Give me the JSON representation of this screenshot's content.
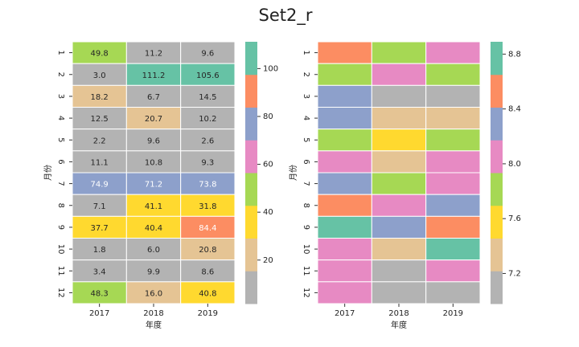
{
  "title": "Set2_r",
  "chart_data": [
    {
      "type": "heatmap",
      "xlabel": "年度",
      "ylabel": "月份",
      "x_categories": [
        "2017",
        "2018",
        "2019"
      ],
      "y_categories": [
        "1",
        "2",
        "3",
        "4",
        "5",
        "6",
        "7",
        "8",
        "9",
        "10",
        "11",
        "12"
      ],
      "values": [
        [
          49.8,
          11.2,
          9.6
        ],
        [
          3.0,
          111.2,
          105.6
        ],
        [
          18.2,
          6.7,
          14.5
        ],
        [
          12.5,
          20.7,
          10.2
        ],
        [
          2.2,
          9.6,
          2.6
        ],
        [
          11.1,
          10.8,
          9.3
        ],
        [
          74.9,
          71.2,
          73.8
        ],
        [
          7.1,
          41.1,
          31.8
        ],
        [
          37.7,
          40.4,
          84.4
        ],
        [
          1.8,
          6.0,
          20.8
        ],
        [
          3.4,
          9.9,
          8.6
        ],
        [
          48.3,
          16.0,
          40.8
        ]
      ],
      "value_labels": [
        [
          "49.8",
          "11.2",
          "9.6"
        ],
        [
          "3.0",
          "111.2",
          "105.6"
        ],
        [
          "18.2",
          "6.7",
          "14.5"
        ],
        [
          "12.5",
          "20.7",
          "10.2"
        ],
        [
          "2.2",
          "9.6",
          "2.6"
        ],
        [
          "11.1",
          "10.8",
          "9.3"
        ],
        [
          "74.9",
          "71.2",
          "73.8"
        ],
        [
          "7.1",
          "41.1",
          "31.8"
        ],
        [
          "37.7",
          "40.4",
          "84.4"
        ],
        [
          "1.8",
          "6.0",
          "20.8"
        ],
        [
          "3.4",
          "9.9",
          "8.6"
        ],
        [
          "48.3",
          "16.0",
          "40.8"
        ]
      ],
      "colors": [
        "#b3b3b3",
        "#e5c494",
        "#ffd92f",
        "#a6d854",
        "#e78ac3",
        "#8da0cb",
        "#fc8d62",
        "#66c2a5"
      ],
      "clim": [
        1.8,
        111.2
      ],
      "cbar_ticks": [
        20,
        40,
        60,
        80,
        100
      ]
    },
    {
      "type": "heatmap",
      "xlabel": "年度",
      "ylabel": "月份",
      "x_categories": [
        "2017",
        "2018",
        "2019"
      ],
      "y_categories": [
        "1",
        "2",
        "3",
        "4",
        "5",
        "6",
        "7",
        "8",
        "9",
        "10",
        "11",
        "12"
      ],
      "values": [
        [
          8.5,
          7.8,
          8.0
        ],
        [
          7.8,
          8.0,
          7.8
        ],
        [
          8.3,
          7.0,
          7.0
        ],
        [
          8.3,
          7.3,
          7.3
        ],
        [
          7.8,
          7.6,
          7.8
        ],
        [
          8.0,
          7.3,
          8.0
        ],
        [
          8.3,
          7.8,
          8.0
        ],
        [
          8.5,
          8.0,
          8.3
        ],
        [
          8.89,
          8.3,
          8.5
        ],
        [
          8.0,
          7.3,
          8.8
        ],
        [
          8.0,
          6.98,
          8.0
        ],
        [
          8.0,
          7.0,
          7.0
        ]
      ],
      "colors": [
        "#b3b3b3",
        "#e5c494",
        "#ffd92f",
        "#a6d854",
        "#e78ac3",
        "#8da0cb",
        "#fc8d62",
        "#66c2a5"
      ],
      "clim": [
        6.98,
        8.89
      ],
      "cbar_ticks": [
        7.2,
        7.6,
        {
          "value": 8,
          "label": "8.0"
        },
        8.4,
        8.8
      ]
    }
  ]
}
